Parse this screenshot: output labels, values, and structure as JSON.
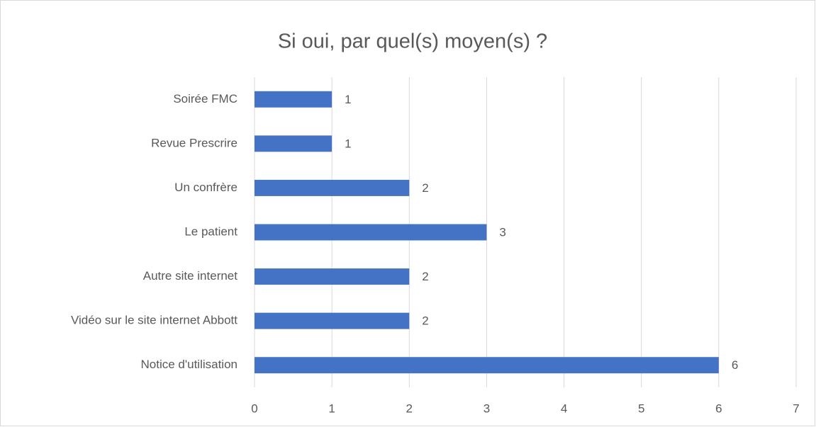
{
  "chart_data": {
    "type": "bar",
    "orientation": "horizontal",
    "title": "Si oui, par quel(s) moyen(s) ?",
    "categories": [
      "Soirée FMC",
      "Revue Prescrire",
      "Un confrère",
      "Le patient",
      "Autre site internet",
      "Vidéo sur le site internet Abbott",
      "Notice d'utilisation"
    ],
    "values": [
      1,
      1,
      2,
      3,
      2,
      2,
      6
    ],
    "color": "#4472c4",
    "xlim": [
      0,
      7
    ],
    "xticks": [
      0,
      1,
      2,
      3,
      4,
      5,
      6,
      7
    ],
    "grid": true
  }
}
